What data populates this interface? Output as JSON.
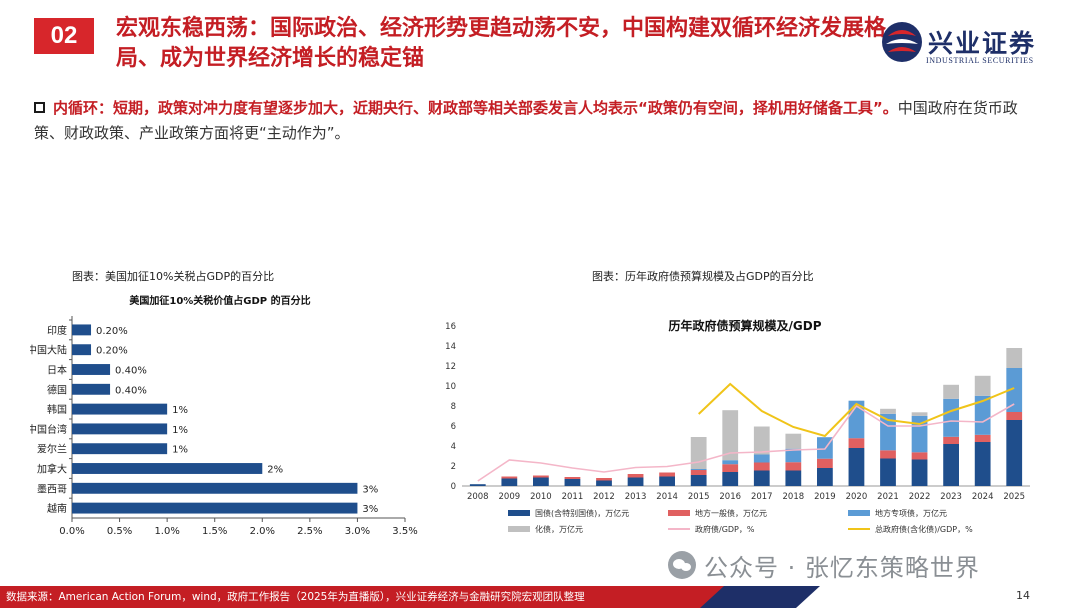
{
  "header": {
    "badge": "02",
    "title": "宏观东稳西荡：国际政治、经济形势更趋动荡不安，中国构建双循环经济发展格局、成为世界经济增长的稳定锚",
    "logo_text": "兴业证券",
    "logo_sub": "INDUSTRIAL SECURITIES"
  },
  "bullet": {
    "strong": "内循环：短期，政策对冲力度有望逐步加大，近期央行、财政部等相关部委发言人均表示“政策仍有空间，择机用好储备工具”。",
    "normal": "中国政府在货币政策、财政政策、产业政策方面将更“主动作为”。"
  },
  "captions": {
    "left": "图表：美国加征10%关税占GDP的百分比",
    "right": "图表：历年政府债预算规模及占GDP的百分比"
  },
  "chart_data": [
    {
      "type": "bar",
      "orientation": "horizontal",
      "title": "美国加征10%关税价值占GDP 的百分比",
      "categories": [
        "印度",
        "中国大陆",
        "日本",
        "德国",
        "韩国",
        "中国台湾",
        "爱尔兰",
        "加拿大",
        "墨西哥",
        "越南"
      ],
      "values": [
        0.2,
        0.2,
        0.4,
        0.4,
        1,
        1,
        1,
        2,
        3,
        3
      ],
      "labels": [
        "0.20%",
        "0.20%",
        "0.40%",
        "0.40%",
        "1%",
        "1%",
        "1%",
        "2%",
        "3%",
        "3%"
      ],
      "xlim": [
        0,
        3.5
      ],
      "xticks": [
        "0.0%",
        "0.5%",
        "1.0%",
        "1.5%",
        "2.0%",
        "2.5%",
        "3.0%",
        "3.5%"
      ],
      "color": "#1f4e8c"
    },
    {
      "type": "bar",
      "stacked": true,
      "title": "历年政府债预算规模及/GDP",
      "categories": [
        "2008",
        "2009",
        "2010",
        "2011",
        "2012",
        "2013",
        "2014",
        "2015",
        "2016",
        "2017",
        "2018",
        "2019",
        "2020",
        "2021",
        "2022",
        "2023",
        "2024",
        "2025"
      ],
      "ylim": [
        0,
        16
      ],
      "yticks": [
        "0",
        "2",
        "4",
        "6",
        "8",
        "10",
        "12",
        "14",
        "16"
      ],
      "series": [
        {
          "name": "国债(含特别国债)，万亿元",
          "color": "#1f4e8c",
          "values": [
            0.18,
            0.75,
            0.85,
            0.7,
            0.55,
            0.85,
            0.95,
            1.1,
            1.4,
            1.55,
            1.55,
            1.8,
            3.8,
            2.75,
            2.65,
            4.2,
            4.4,
            6.6
          ]
        },
        {
          "name": "地方一般债，万亿元",
          "color": "#e06060",
          "values": [
            0,
            0.2,
            0.2,
            0.2,
            0.25,
            0.35,
            0.4,
            0.5,
            0.78,
            0.8,
            0.83,
            0.93,
            0.98,
            0.82,
            0.72,
            0.72,
            0.72,
            0.8
          ]
        },
        {
          "name": "地方专项债，万亿元",
          "color": "#5b9bd5",
          "values": [
            0,
            0,
            0,
            0,
            0,
            0,
            0,
            0.1,
            0.4,
            0.8,
            1.35,
            2.15,
            3.75,
            3.65,
            3.65,
            3.8,
            3.9,
            4.4
          ]
        },
        {
          "name": "化债，万亿元",
          "color": "#c0c0c0",
          "values": [
            0,
            0,
            0,
            0,
            0,
            0,
            0,
            3.2,
            5.0,
            2.8,
            1.5,
            0,
            0,
            0.5,
            0.35,
            1.4,
            2.0,
            2.0
          ]
        }
      ],
      "lines": [
        {
          "name": "政府债/GDP，%",
          "color": "#f4b6c8",
          "values": [
            0.5,
            2.6,
            2.3,
            1.8,
            1.4,
            1.85,
            1.95,
            2.4,
            3.3,
            3.4,
            3.6,
            3.7,
            8.0,
            6.0,
            6.0,
            6.5,
            6.4,
            8.2
          ]
        },
        {
          "name": "总政府债(含化债)/GDP，%",
          "color": "#f0c419",
          "startIndex": 7,
          "values": [
            7.2,
            10.2,
            7.5,
            5.9,
            5.0,
            8.2,
            6.6,
            6.2,
            7.5,
            8.5,
            9.8
          ]
        }
      ]
    }
  ],
  "footer": {
    "source": "数据来源：American Action Forum，wind，政府工作报告（2025年为直播版），兴业证券经济与金融研究院宏观团队整理",
    "page": "14",
    "watermark": "公众号 · 张忆东策略世界"
  }
}
